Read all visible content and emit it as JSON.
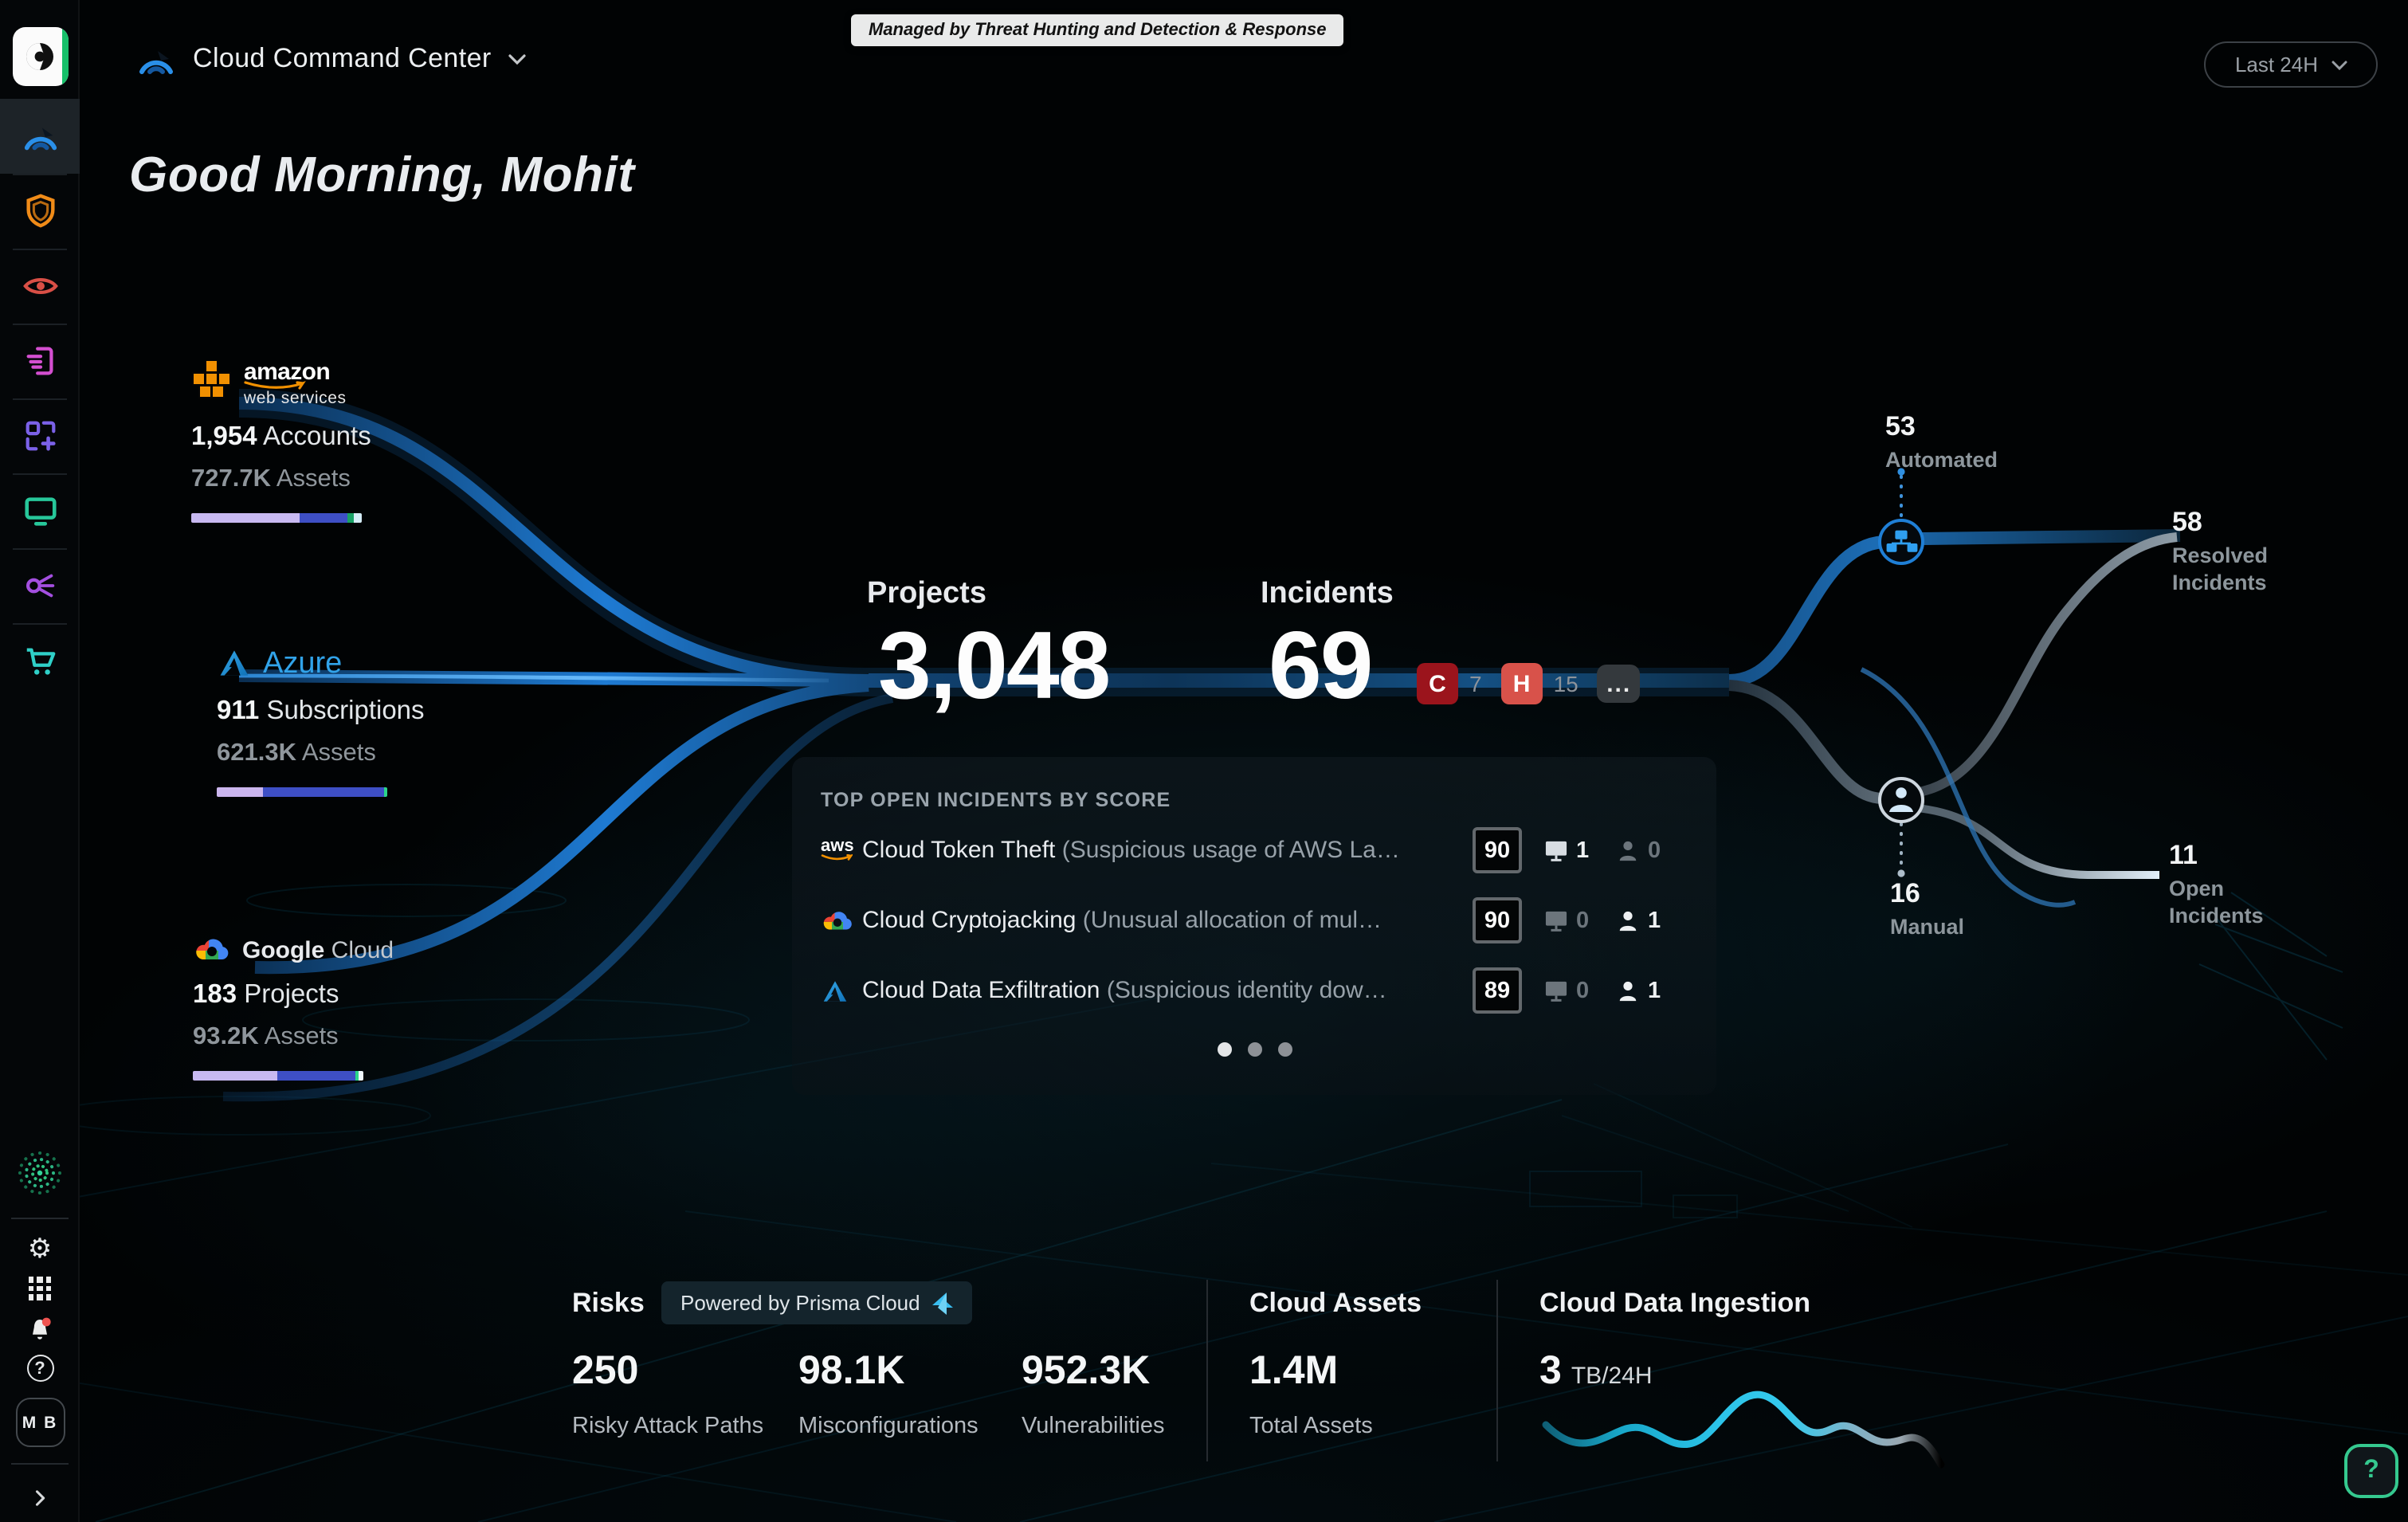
{
  "app": {
    "product_title": "Cloud Command Center",
    "managed_badge": "Managed by Threat Hunting and Detection & Response",
    "time_range": "Last 24H",
    "greeting": "Good Morning, Mohit",
    "help_label": "?"
  },
  "sidebar": {
    "avatar_initials": "M B",
    "nav_icons": [
      "cloud-command-center-icon",
      "shield-icon",
      "eye-icon",
      "document-export-icon",
      "blocks-add-icon",
      "monitor-icon",
      "share-node-icon",
      "cart-icon"
    ],
    "utility_icons": [
      "unit42-spiral-icon",
      "gear-icon",
      "apps-grid-icon",
      "bell-icon",
      "help-icon",
      "collapse-chevron-icon"
    ]
  },
  "providers": {
    "aws": {
      "logo_mark": "aws",
      "logo_line1": "amazon",
      "logo_line2": "web services",
      "value1": "1,954",
      "label1": "Accounts",
      "value2": "727.7K",
      "label2": "Assets",
      "bar": [
        {
          "color": "#c8b9f1",
          "pct": 63.8
        },
        {
          "color": "#3e4fc5",
          "pct": 27.9
        },
        {
          "color": "#18a266",
          "pct": 3.8
        },
        {
          "color": "#d4edf7",
          "pct": 4.5
        }
      ]
    },
    "azure": {
      "logo_text": "Azure",
      "value1": "911",
      "label1": "Subscriptions",
      "value2": "621.3K",
      "label2": "Assets",
      "bar": [
        {
          "color": "#cbb6ee",
          "pct": 27.2
        },
        {
          "color": "#3e4fc5",
          "pct": 70.9
        },
        {
          "color": "#2bd58a",
          "pct": 1.9
        }
      ]
    },
    "gcp": {
      "logo_text_1": "Google",
      "logo_text_2": " Cloud",
      "value1": "183",
      "label1": "Projects",
      "value2": "93.2K",
      "label2": "Assets",
      "bar": [
        {
          "color": "#c8b9f1",
          "pct": 49.2
        },
        {
          "color": "#3e4fc5",
          "pct": 46.0
        },
        {
          "color": "#2bd58a",
          "pct": 2.1
        },
        {
          "color": "#eef7fb",
          "pct": 2.7
        }
      ]
    }
  },
  "center": {
    "projects_label": "Projects",
    "projects_value": "3,048",
    "incidents_label": "Incidents",
    "incidents_value": "69",
    "severity_critical_code": "C",
    "severity_critical_count": "7",
    "severity_critical_color": "#9b141c",
    "severity_high_code": "H",
    "severity_high_count": "15",
    "severity_high_color": "#d8524a",
    "more_badge": "..."
  },
  "flow": {
    "automated_value": "53",
    "automated_label": "Automated",
    "manual_value": "16",
    "manual_label": "Manual",
    "resolved_value": "58",
    "resolved_label_line1": "Resolved",
    "resolved_label_line2": "Incidents",
    "open_value": "11",
    "open_label_line1": "Open",
    "open_label_line2": "Incidents"
  },
  "incidents_panel": {
    "title": "TOP OPEN INCIDENTS BY SCORE",
    "rows": [
      {
        "provider": "aws",
        "name": "Cloud Token Theft",
        "desc": " (Suspicious usage of AWS La…",
        "score": "90",
        "hosts": "1",
        "users": "0"
      },
      {
        "provider": "google-cloud",
        "name": "Cloud Cryptojacking",
        "desc": " (Unusual allocation of mul…",
        "score": "90",
        "hosts": "0",
        "users": "1"
      },
      {
        "provider": "azure",
        "name": "Cloud Data Exfiltration",
        "desc": " (Suspicious identity dow…",
        "score": "89",
        "hosts": "0",
        "users": "1"
      }
    ],
    "pagination_dots": 3
  },
  "bottom": {
    "risks_title": "Risks",
    "powered_by": "Powered by Prisma Cloud",
    "risk_stats": [
      {
        "value": "250",
        "label": "Risky Attack Paths"
      },
      {
        "value": "98.1K",
        "label": "Misconfigurations"
      },
      {
        "value": "952.3K",
        "label": "Vulnerabilities"
      }
    ],
    "assets_title": "Cloud Assets",
    "assets_value": "1.4M",
    "assets_label": "Total Assets",
    "ingestion_title": "Cloud Data Ingestion",
    "ingestion_value": "3",
    "ingestion_unit": "TB/24H"
  },
  "colors": {
    "accent_blue": "#2a8fe8",
    "critical": "#9b141c",
    "high": "#d8524a",
    "help_green": "#35c98f",
    "lavender": "#c8b9f1",
    "indigo": "#3e4fc5",
    "spark_teal": "#2cc4ea"
  }
}
